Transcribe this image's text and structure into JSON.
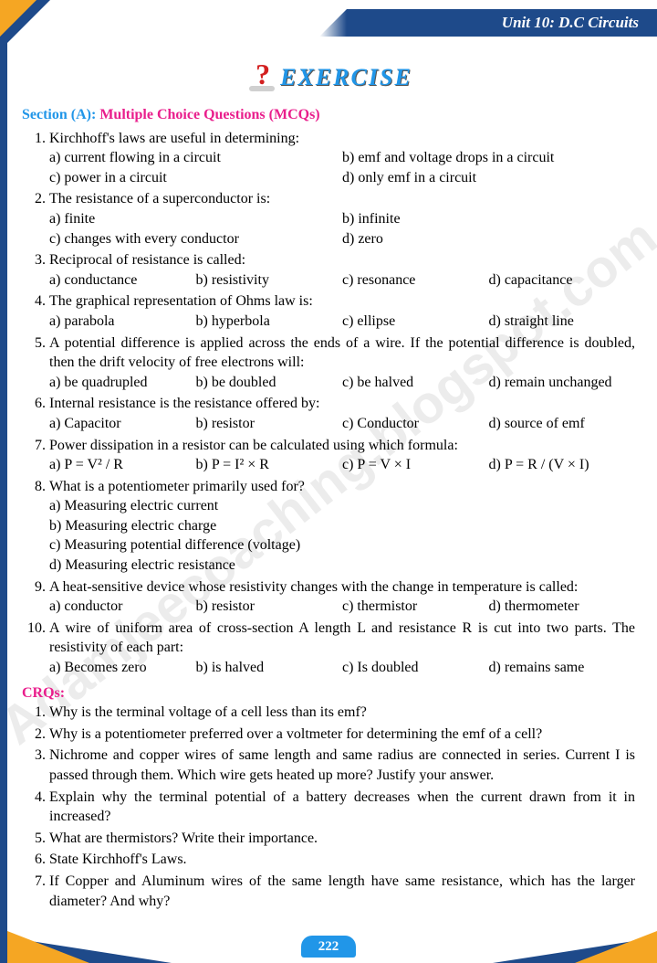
{
  "header": {
    "unit": "Unit 10: D.C Circuits"
  },
  "exercise_title": "EXERCISE",
  "section_a": {
    "label": "Section (A):",
    "subtitle": "Multiple Choice Questions (MCQs)"
  },
  "mcq": [
    {
      "n": "1.",
      "q": "Kirchhoff's laws are useful in determining:",
      "layout": "opt2",
      "opts": [
        "a) current flowing in a circuit",
        "b) emf and voltage drops in a circuit",
        "c) power in a circuit",
        "d) only emf in a circuit"
      ]
    },
    {
      "n": "2.",
      "q": "The resistance of a superconductor is:",
      "layout": "opt2",
      "opts": [
        "a) finite",
        "b) infinite",
        "c) changes with every conductor",
        "d) zero"
      ]
    },
    {
      "n": "3.",
      "q": "Reciprocal of resistance is called:",
      "layout": "opt4",
      "opts": [
        "a) conductance",
        "b) resistivity",
        "c) resonance",
        "d) capacitance"
      ]
    },
    {
      "n": "4.",
      "q": "The graphical representation of Ohms law is:",
      "layout": "opt4",
      "opts": [
        "a) parabola",
        "b) hyperbola",
        "c) ellipse",
        "d) straight line"
      ]
    },
    {
      "n": "5.",
      "q": "A potential difference is applied across the ends of a wire. If the potential difference is doubled, then the drift velocity of free electrons will:",
      "layout": "opt4",
      "opts": [
        "a) be quadrupled",
        "b) be doubled",
        "c) be halved",
        "d) remain unchanged"
      ]
    },
    {
      "n": "6.",
      "q": "Internal resistance is the resistance offered by:",
      "layout": "opt4",
      "opts": [
        "a) Capacitor",
        "b) resistor",
        "c) Conductor",
        "d) source of emf"
      ]
    },
    {
      "n": "7.",
      "q": "Power dissipation in a resistor can be calculated using which formula:",
      "layout": "opt4",
      "opts": [
        "a) P = V² / R",
        "b) P = I² × R",
        "c) P = V × I",
        "d) P = R / (V × I)"
      ]
    },
    {
      "n": "8.",
      "q": "What is a potentiometer primarily used for?",
      "layout": "opt1",
      "opts": [
        "a) Measuring electric current",
        "b) Measuring electric charge",
        "c) Measuring potential difference (voltage)",
        "d) Measuring electric resistance"
      ]
    },
    {
      "n": "9.",
      "q": "A heat-sensitive device whose resistivity changes with the change in temperature is called:",
      "layout": "opt4",
      "opts": [
        "a) conductor",
        "b) resistor",
        "c) thermistor",
        "d) thermometer"
      ]
    },
    {
      "n": "10.",
      "q": "A wire of uniform area of cross-section A length L and resistance R is cut into two parts. The resistivity of each part:",
      "layout": "opt4",
      "opts": [
        "a) Becomes zero",
        "b) is halved",
        "c) Is doubled",
        "d) remains same"
      ]
    }
  ],
  "crq_label": "CRQs:",
  "crq": [
    {
      "n": "1.",
      "q": "Why is the terminal voltage of a cell less than its emf?"
    },
    {
      "n": "2.",
      "q": "Why is a potentiometer preferred over a voltmeter for determining the emf of a cell?"
    },
    {
      "n": "3.",
      "q": "Nichrome and copper wires of same length and same radius are connected in series. Current I is passed through them. Which wire gets heated up more? Justify your answer."
    },
    {
      "n": "4.",
      "q": "Explain why the terminal potential of a battery decreases when the current drawn from it in increased?"
    },
    {
      "n": "5.",
      "q": "What are thermistors?  Write their importance."
    },
    {
      "n": "6.",
      "q": "State Kirchhoff's Laws."
    },
    {
      "n": "7.",
      "q": "If Copper and Aluminum wires of the same length have same resistance, which has the larger diameter? And why?"
    }
  ],
  "page_number": "222",
  "watermark": "Adamjeecoaching.blogspot.com",
  "colors": {
    "blue": "#1e4a8a",
    "cyan": "#2196e8",
    "pink": "#e91e8c",
    "orange": "#f5a623"
  }
}
